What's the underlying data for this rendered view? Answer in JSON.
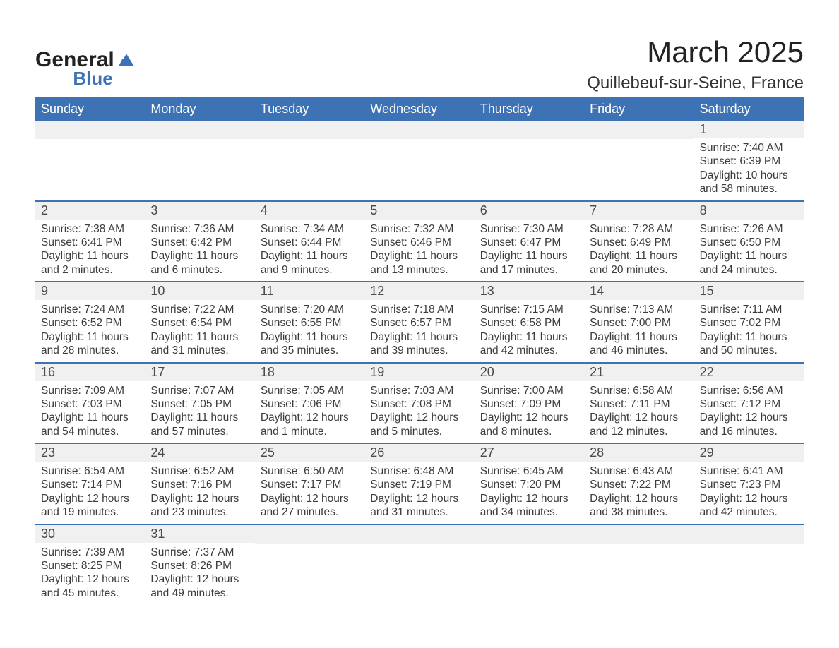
{
  "brand": {
    "line1": "General",
    "line2": "Blue",
    "icon_color": "#3d72b4",
    "text_color": "#222222"
  },
  "header": {
    "title": "March 2025",
    "location": "Quillebeuf-sur-Seine, France"
  },
  "colors": {
    "header_bg": "#3d72b4",
    "header_text": "#ffffff",
    "row_divider": "#3d72b4",
    "daynum_bg": "#f0f0f0",
    "body_text": "#3c3c3c",
    "page_bg": "#ffffff"
  },
  "typography": {
    "title_fontsize": 42,
    "location_fontsize": 24,
    "dow_fontsize": 18,
    "daynum_fontsize": 18,
    "body_fontsize": 15.5
  },
  "days_of_week": [
    "Sunday",
    "Monday",
    "Tuesday",
    "Wednesday",
    "Thursday",
    "Friday",
    "Saturday"
  ],
  "weeks": [
    [
      {
        "empty": true
      },
      {
        "empty": true
      },
      {
        "empty": true
      },
      {
        "empty": true
      },
      {
        "empty": true
      },
      {
        "empty": true
      },
      {
        "n": "1",
        "sr": "Sunrise: 7:40 AM",
        "ss": "Sunset: 6:39 PM",
        "d1": "Daylight: 10 hours",
        "d2": "and 58 minutes."
      }
    ],
    [
      {
        "n": "2",
        "sr": "Sunrise: 7:38 AM",
        "ss": "Sunset: 6:41 PM",
        "d1": "Daylight: 11 hours",
        "d2": "and 2 minutes."
      },
      {
        "n": "3",
        "sr": "Sunrise: 7:36 AM",
        "ss": "Sunset: 6:42 PM",
        "d1": "Daylight: 11 hours",
        "d2": "and 6 minutes."
      },
      {
        "n": "4",
        "sr": "Sunrise: 7:34 AM",
        "ss": "Sunset: 6:44 PM",
        "d1": "Daylight: 11 hours",
        "d2": "and 9 minutes."
      },
      {
        "n": "5",
        "sr": "Sunrise: 7:32 AM",
        "ss": "Sunset: 6:46 PM",
        "d1": "Daylight: 11 hours",
        "d2": "and 13 minutes."
      },
      {
        "n": "6",
        "sr": "Sunrise: 7:30 AM",
        "ss": "Sunset: 6:47 PM",
        "d1": "Daylight: 11 hours",
        "d2": "and 17 minutes."
      },
      {
        "n": "7",
        "sr": "Sunrise: 7:28 AM",
        "ss": "Sunset: 6:49 PM",
        "d1": "Daylight: 11 hours",
        "d2": "and 20 minutes."
      },
      {
        "n": "8",
        "sr": "Sunrise: 7:26 AM",
        "ss": "Sunset: 6:50 PM",
        "d1": "Daylight: 11 hours",
        "d2": "and 24 minutes."
      }
    ],
    [
      {
        "n": "9",
        "sr": "Sunrise: 7:24 AM",
        "ss": "Sunset: 6:52 PM",
        "d1": "Daylight: 11 hours",
        "d2": "and 28 minutes."
      },
      {
        "n": "10",
        "sr": "Sunrise: 7:22 AM",
        "ss": "Sunset: 6:54 PM",
        "d1": "Daylight: 11 hours",
        "d2": "and 31 minutes."
      },
      {
        "n": "11",
        "sr": "Sunrise: 7:20 AM",
        "ss": "Sunset: 6:55 PM",
        "d1": "Daylight: 11 hours",
        "d2": "and 35 minutes."
      },
      {
        "n": "12",
        "sr": "Sunrise: 7:18 AM",
        "ss": "Sunset: 6:57 PM",
        "d1": "Daylight: 11 hours",
        "d2": "and 39 minutes."
      },
      {
        "n": "13",
        "sr": "Sunrise: 7:15 AM",
        "ss": "Sunset: 6:58 PM",
        "d1": "Daylight: 11 hours",
        "d2": "and 42 minutes."
      },
      {
        "n": "14",
        "sr": "Sunrise: 7:13 AM",
        "ss": "Sunset: 7:00 PM",
        "d1": "Daylight: 11 hours",
        "d2": "and 46 minutes."
      },
      {
        "n": "15",
        "sr": "Sunrise: 7:11 AM",
        "ss": "Sunset: 7:02 PM",
        "d1": "Daylight: 11 hours",
        "d2": "and 50 minutes."
      }
    ],
    [
      {
        "n": "16",
        "sr": "Sunrise: 7:09 AM",
        "ss": "Sunset: 7:03 PM",
        "d1": "Daylight: 11 hours",
        "d2": "and 54 minutes."
      },
      {
        "n": "17",
        "sr": "Sunrise: 7:07 AM",
        "ss": "Sunset: 7:05 PM",
        "d1": "Daylight: 11 hours",
        "d2": "and 57 minutes."
      },
      {
        "n": "18",
        "sr": "Sunrise: 7:05 AM",
        "ss": "Sunset: 7:06 PM",
        "d1": "Daylight: 12 hours",
        "d2": "and 1 minute."
      },
      {
        "n": "19",
        "sr": "Sunrise: 7:03 AM",
        "ss": "Sunset: 7:08 PM",
        "d1": "Daylight: 12 hours",
        "d2": "and 5 minutes."
      },
      {
        "n": "20",
        "sr": "Sunrise: 7:00 AM",
        "ss": "Sunset: 7:09 PM",
        "d1": "Daylight: 12 hours",
        "d2": "and 8 minutes."
      },
      {
        "n": "21",
        "sr": "Sunrise: 6:58 AM",
        "ss": "Sunset: 7:11 PM",
        "d1": "Daylight: 12 hours",
        "d2": "and 12 minutes."
      },
      {
        "n": "22",
        "sr": "Sunrise: 6:56 AM",
        "ss": "Sunset: 7:12 PM",
        "d1": "Daylight: 12 hours",
        "d2": "and 16 minutes."
      }
    ],
    [
      {
        "n": "23",
        "sr": "Sunrise: 6:54 AM",
        "ss": "Sunset: 7:14 PM",
        "d1": "Daylight: 12 hours",
        "d2": "and 19 minutes."
      },
      {
        "n": "24",
        "sr": "Sunrise: 6:52 AM",
        "ss": "Sunset: 7:16 PM",
        "d1": "Daylight: 12 hours",
        "d2": "and 23 minutes."
      },
      {
        "n": "25",
        "sr": "Sunrise: 6:50 AM",
        "ss": "Sunset: 7:17 PM",
        "d1": "Daylight: 12 hours",
        "d2": "and 27 minutes."
      },
      {
        "n": "26",
        "sr": "Sunrise: 6:48 AM",
        "ss": "Sunset: 7:19 PM",
        "d1": "Daylight: 12 hours",
        "d2": "and 31 minutes."
      },
      {
        "n": "27",
        "sr": "Sunrise: 6:45 AM",
        "ss": "Sunset: 7:20 PM",
        "d1": "Daylight: 12 hours",
        "d2": "and 34 minutes."
      },
      {
        "n": "28",
        "sr": "Sunrise: 6:43 AM",
        "ss": "Sunset: 7:22 PM",
        "d1": "Daylight: 12 hours",
        "d2": "and 38 minutes."
      },
      {
        "n": "29",
        "sr": "Sunrise: 6:41 AM",
        "ss": "Sunset: 7:23 PM",
        "d1": "Daylight: 12 hours",
        "d2": "and 42 minutes."
      }
    ],
    [
      {
        "n": "30",
        "sr": "Sunrise: 7:39 AM",
        "ss": "Sunset: 8:25 PM",
        "d1": "Daylight: 12 hours",
        "d2": "and 45 minutes."
      },
      {
        "n": "31",
        "sr": "Sunrise: 7:37 AM",
        "ss": "Sunset: 8:26 PM",
        "d1": "Daylight: 12 hours",
        "d2": "and 49 minutes."
      },
      {
        "empty": true
      },
      {
        "empty": true
      },
      {
        "empty": true
      },
      {
        "empty": true
      },
      {
        "empty": true
      }
    ]
  ]
}
